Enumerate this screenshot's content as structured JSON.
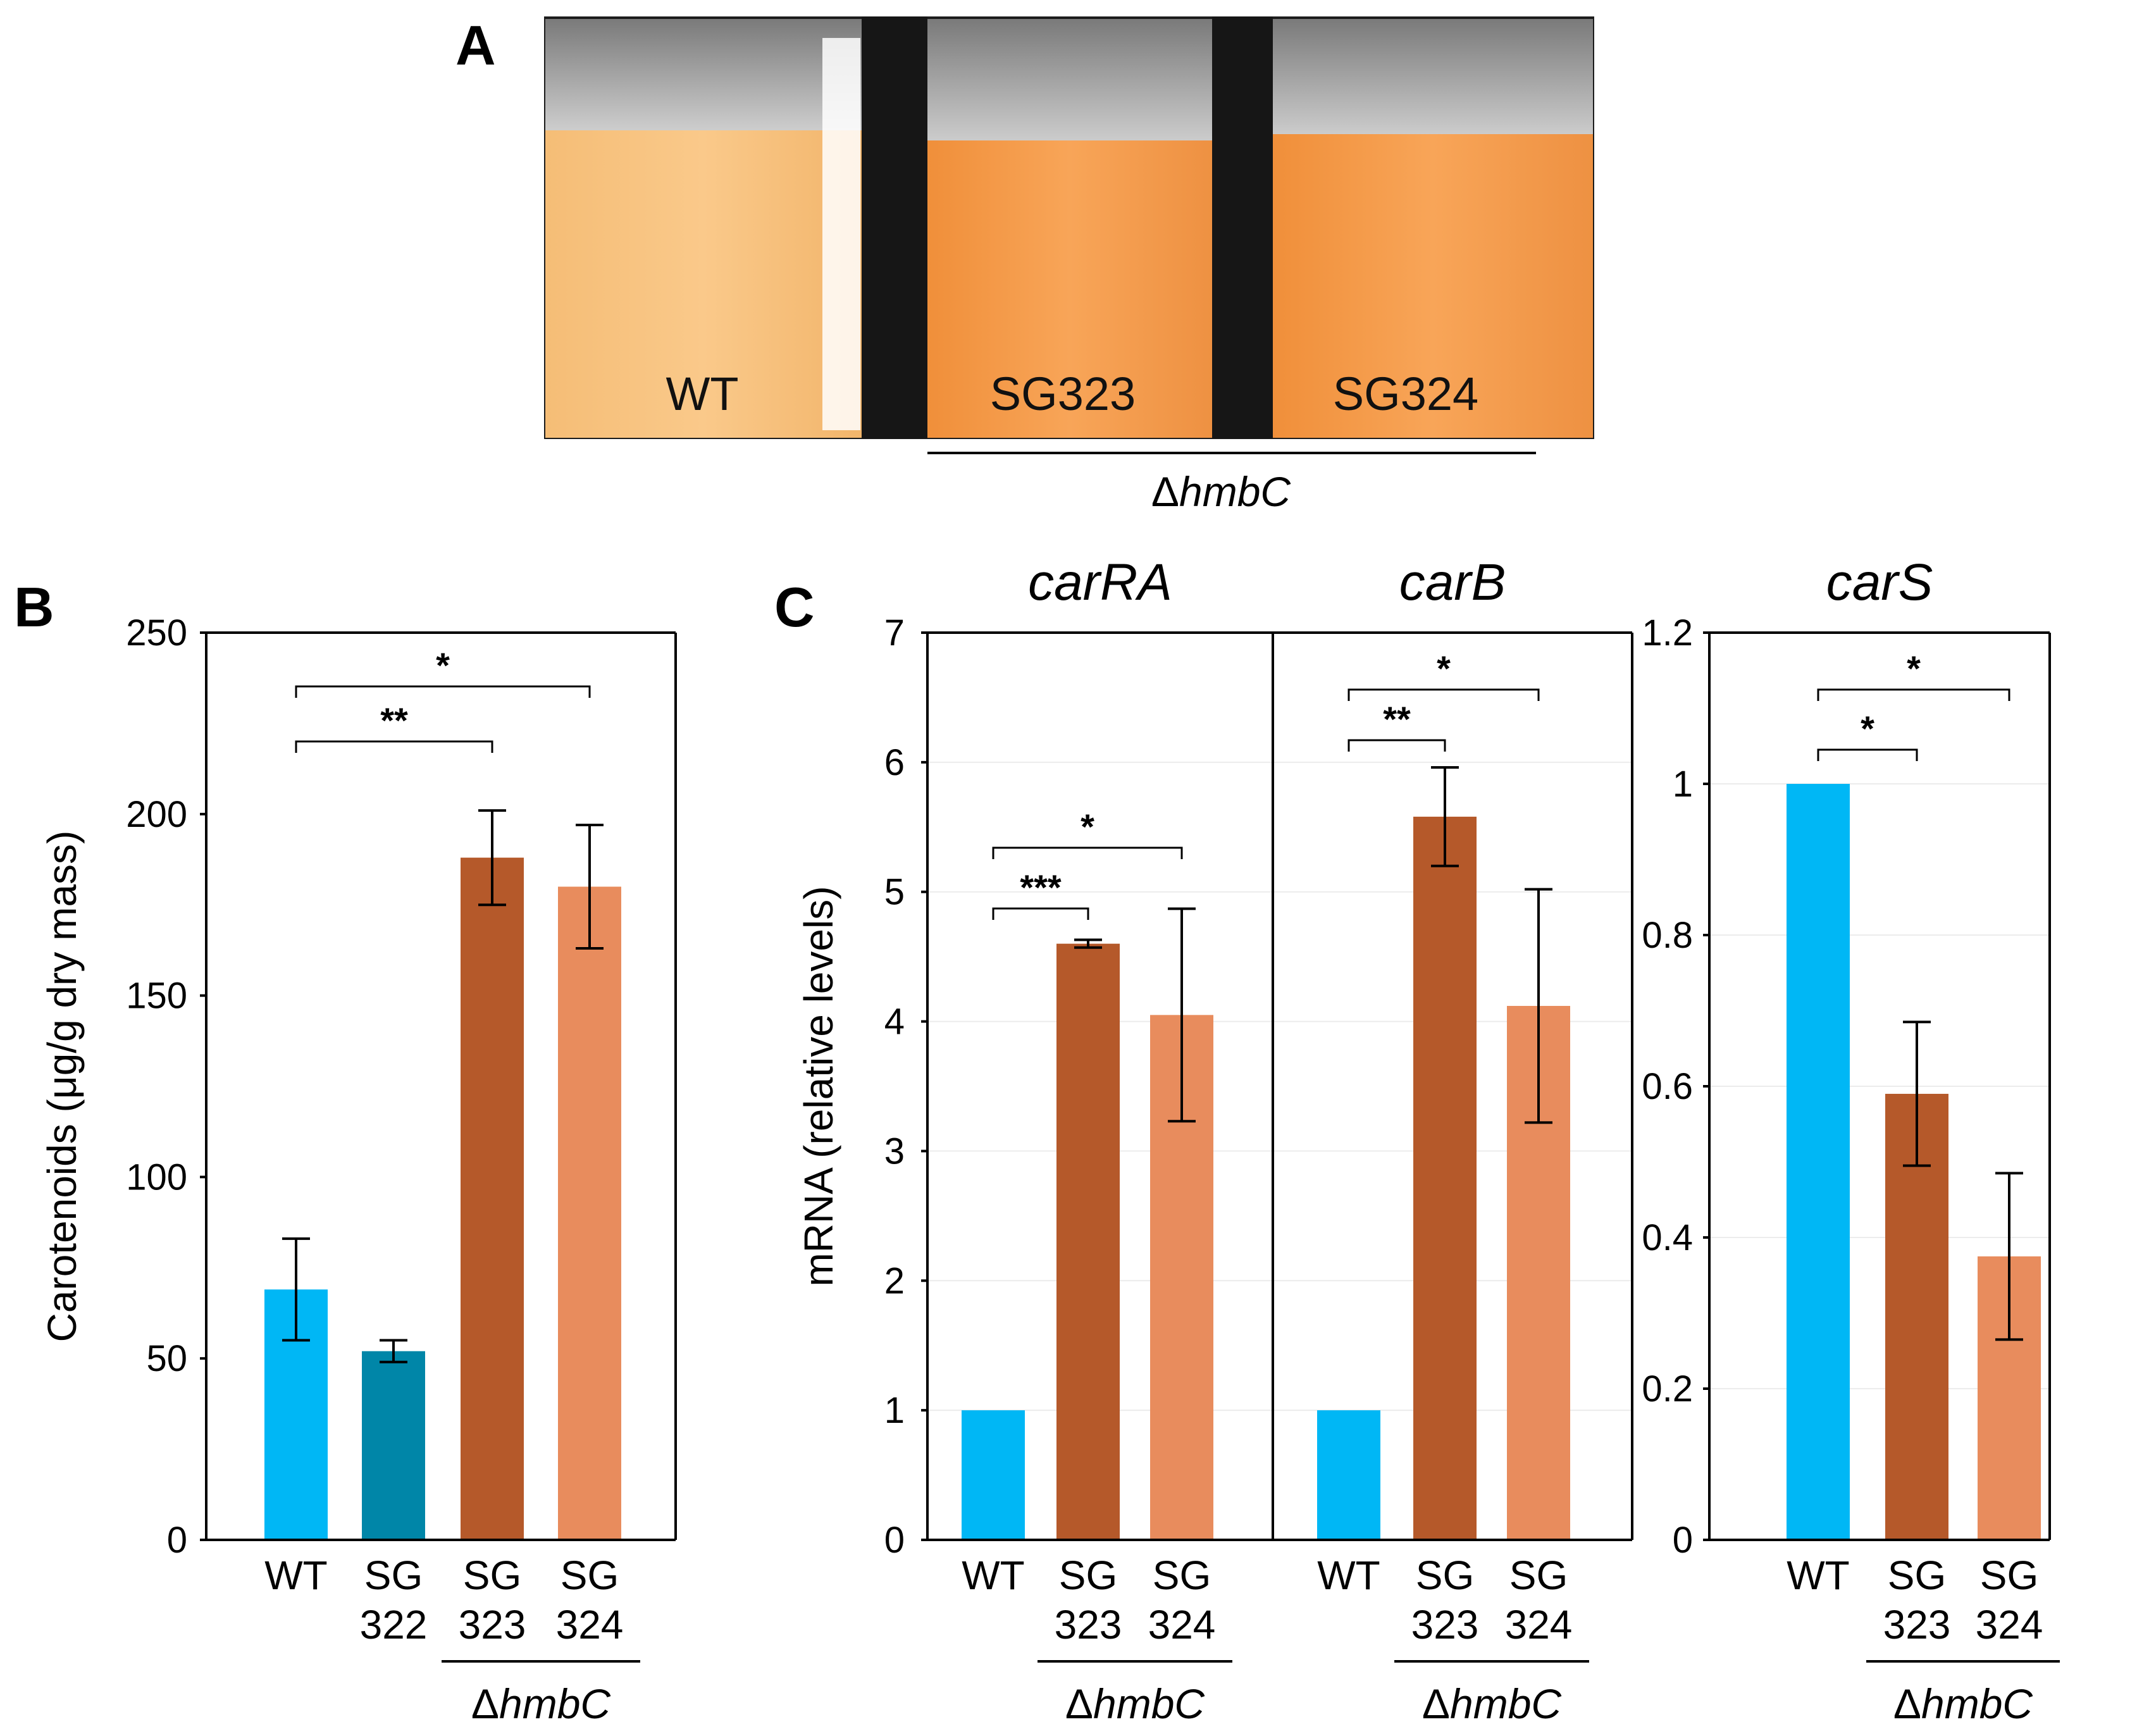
{
  "figure": {
    "panel_a": {
      "letter": "A",
      "tube_labels": [
        "WT",
        "SG323",
        "SG324"
      ],
      "group_label_prefix": "Δ",
      "group_label_gene": "hmbC",
      "colors": {
        "wt_culture": "#f7c27e",
        "mutant_culture": "#f59a45",
        "background": "#1c1c1c"
      }
    },
    "panel_b_letter": "B",
    "panel_c_letter": "C",
    "group_label_prefix": "Δ",
    "group_label_gene": "hmbC"
  },
  "chart_data": [
    {
      "id": "carotenoids",
      "type": "bar",
      "title": "",
      "ylabel": "Carotenoids (μg/g dry mass)",
      "xlabel": "",
      "ylim": [
        0,
        250
      ],
      "yticks": [
        0,
        50,
        100,
        150,
        200,
        250
      ],
      "ytick_labels": [
        "0",
        "50",
        "100",
        "150",
        "200",
        "250"
      ],
      "grid": false,
      "categories": [
        "WT",
        "SG 322",
        "SG 323",
        "SG 324"
      ],
      "category_lines": [
        [
          "WT"
        ],
        [
          "SG",
          "322"
        ],
        [
          "SG",
          "323"
        ],
        [
          "SG",
          "324"
        ]
      ],
      "values": [
        69,
        52,
        188,
        180
      ],
      "errors": [
        14,
        3,
        13,
        17
      ],
      "colors": [
        "#00b7f5",
        "#0086a8",
        "#b5592a",
        "#e88c5d"
      ],
      "significance": [
        {
          "from": 0,
          "to": 2,
          "label": "**"
        },
        {
          "from": 0,
          "to": 3,
          "label": "*"
        }
      ],
      "group_bracket": {
        "from": 2,
        "to": 3,
        "label": "ΔhmbC"
      }
    },
    {
      "id": "carRA",
      "type": "bar",
      "title": "carRA",
      "ylabel": "mRNA (relative levels)",
      "xlabel": "",
      "ylim": [
        0,
        7
      ],
      "yticks": [
        0,
        1,
        2,
        3,
        4,
        5,
        6,
        7
      ],
      "ytick_labels": [
        "0",
        "1",
        "2",
        "3",
        "4",
        "5",
        "6",
        "7"
      ],
      "grid": true,
      "categories": [
        "WT",
        "SG 323",
        "SG 324"
      ],
      "category_lines": [
        [
          "WT"
        ],
        [
          "SG",
          "323"
        ],
        [
          "SG",
          "324"
        ]
      ],
      "values": [
        1.0,
        4.6,
        4.05
      ],
      "errors": [
        0,
        0.03,
        0.82
      ],
      "colors": [
        "#00b7f5",
        "#b5592a",
        "#e88c5d"
      ],
      "significance": [
        {
          "from": 0,
          "to": 1,
          "label": "***"
        },
        {
          "from": 0,
          "to": 2,
          "label": "*"
        }
      ],
      "group_bracket": {
        "from": 1,
        "to": 2,
        "label": "ΔhmbC"
      }
    },
    {
      "id": "carB",
      "type": "bar",
      "title": "carB",
      "ylabel": "",
      "xlabel": "",
      "ylim": [
        0,
        7
      ],
      "yticks": [
        0,
        1,
        2,
        3,
        4,
        5,
        6,
        7
      ],
      "ytick_labels": [],
      "grid": true,
      "categories": [
        "WT",
        "SG 323",
        "SG 324"
      ],
      "category_lines": [
        [
          "WT"
        ],
        [
          "SG",
          "323"
        ],
        [
          "SG",
          "324"
        ]
      ],
      "values": [
        1.0,
        5.58,
        4.12
      ],
      "errors": [
        0,
        0.38,
        0.9
      ],
      "colors": [
        "#00b7f5",
        "#b5592a",
        "#e88c5d"
      ],
      "significance": [
        {
          "from": 0,
          "to": 1,
          "label": "**"
        },
        {
          "from": 0,
          "to": 2,
          "label": "*"
        }
      ],
      "group_bracket": {
        "from": 1,
        "to": 2,
        "label": "ΔhmbC"
      }
    },
    {
      "id": "carS",
      "type": "bar",
      "title": "carS",
      "ylabel": "",
      "xlabel": "",
      "ylim": [
        0,
        1.2
      ],
      "yticks": [
        0,
        0.2,
        0.4,
        0.6,
        0.8,
        1.0,
        1.2
      ],
      "ytick_labels": [
        "0",
        "0.2",
        "0.4",
        "0.6",
        "0.8",
        "1",
        "1.2"
      ],
      "grid": true,
      "categories": [
        "WT",
        "SG 323",
        "SG 324"
      ],
      "category_lines": [
        [
          "WT"
        ],
        [
          "SG",
          "323"
        ],
        [
          "SG",
          "324"
        ]
      ],
      "values": [
        1.0,
        0.59,
        0.375
      ],
      "errors": [
        0,
        0.095,
        0.11
      ],
      "colors": [
        "#00b7f5",
        "#b5592a",
        "#e88c5d"
      ],
      "significance": [
        {
          "from": 0,
          "to": 1,
          "label": "*"
        },
        {
          "from": 0,
          "to": 2,
          "label": "*"
        }
      ],
      "group_bracket": {
        "from": 1,
        "to": 2,
        "label": "ΔhmbC"
      }
    }
  ]
}
